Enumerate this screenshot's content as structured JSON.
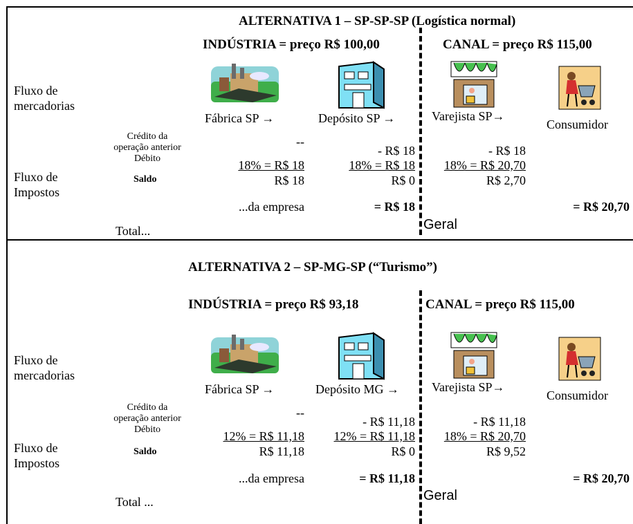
{
  "sections": [
    {
      "title": "ALTERNATIVA 1 – SP-SP-SP (Logística normal)",
      "industria": "INDÚSTRIA = preço R$ 100,00",
      "canal": "CANAL = preço R$ 115,00",
      "row_labels": {
        "fluxo_merc": [
          "Fluxo de",
          "mercadorias"
        ],
        "fluxo_imp": [
          "Fluxo de",
          "Impostos"
        ]
      },
      "small_labels": [
        "Crédito da",
        "operação anterior",
        "Débito",
        "Saldo"
      ],
      "nodes": [
        "Fábrica SP →",
        "Depósito SP →",
        "Varejista SP→",
        "Consumidor"
      ],
      "icons": [
        "factory-icon",
        "warehouse-icon",
        "storefront-icon",
        "shopper-icon"
      ],
      "fabrica": {
        "credito": "--",
        "debito": "18% = R$ 18",
        "saldo": "R$ 18"
      },
      "deposito": {
        "credito": "- R$ 18",
        "debito": "18% = R$ 18",
        "saldo": "R$ 0"
      },
      "varejista": {
        "credito": "- R$ 18",
        "debito": "18% = R$ 20,70",
        "saldo": "R$ 2,70"
      },
      "da_empresa": "...da empresa",
      "total_empresa": "= R$ 18",
      "geral": "Geral",
      "total_geral": "= R$ 20,70",
      "total_label": "Total..."
    },
    {
      "title": "ALTERNATIVA 2 – SP-MG-SP (“Turismo”)",
      "industria": "INDÚSTRIA = preço R$ 93,18",
      "canal": "CANAL = preço R$ 115,00",
      "row_labels": {
        "fluxo_merc": [
          "Fluxo de",
          "mercadorias"
        ],
        "fluxo_imp": [
          "Fluxo de",
          "Impostos"
        ]
      },
      "small_labels": [
        "Crédito da",
        "operação anterior",
        "Débito",
        "Saldo"
      ],
      "nodes": [
        "Fábrica SP →",
        "Depósito MG →",
        "Varejista SP→",
        "Consumidor"
      ],
      "icons": [
        "factory-icon",
        "warehouse-icon",
        "storefront-icon",
        "shopper-icon"
      ],
      "fabrica": {
        "credito": "--",
        "debito": "12% = R$ 11,18",
        "saldo": "R$ 11,18"
      },
      "deposito": {
        "credito": "- R$ 11,18",
        "debito": "12% = R$ 11,18",
        "saldo": "R$ 0"
      },
      "varejista": {
        "credito": "- R$ 11,18",
        "debito": "18% = R$ 20,70",
        "saldo": "R$ 9,52"
      },
      "da_empresa": "...da empresa",
      "total_empresa": "= R$ 11,18",
      "geral": "Geral",
      "total_geral": "= R$ 20,70",
      "total_label": "Total ..."
    }
  ]
}
